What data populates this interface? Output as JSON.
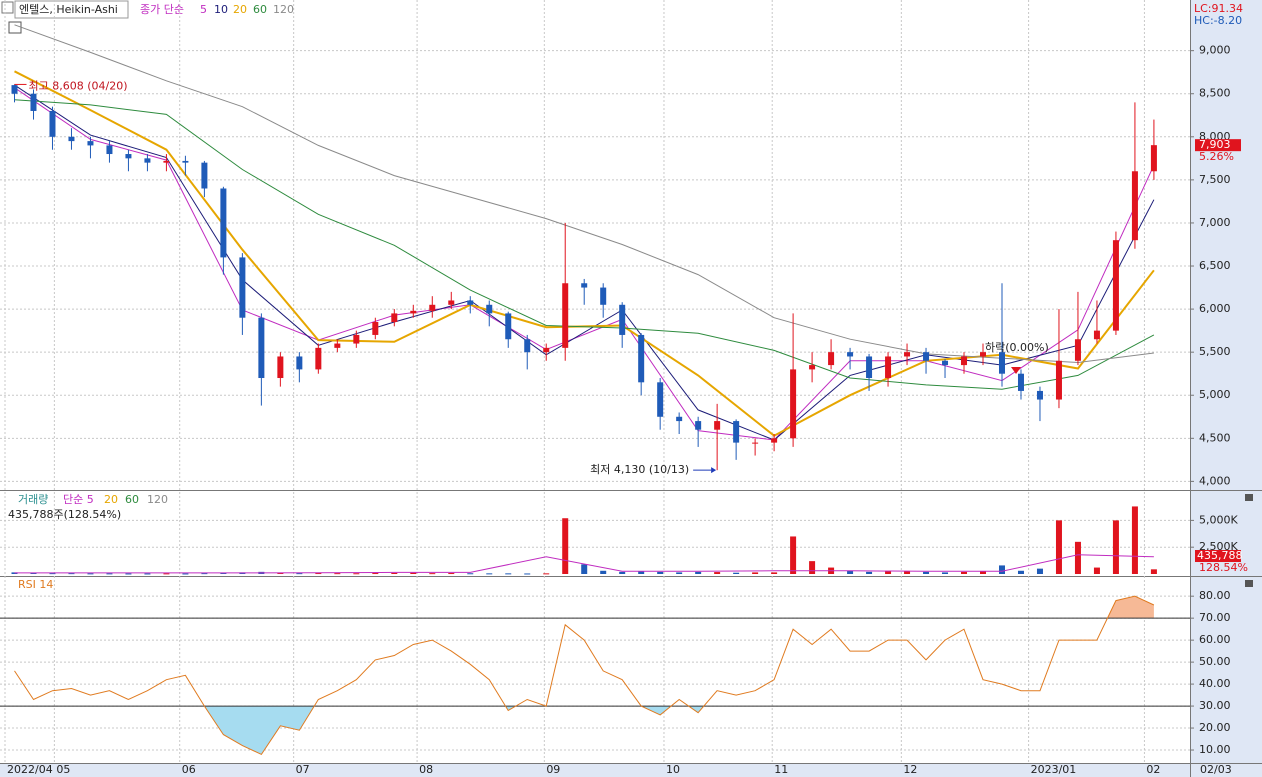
{
  "header": {
    "title": "엔텔스, Heikin-Ashi",
    "lc": "LC:91.34",
    "hc": "HC:-8.20"
  },
  "chart_data": [
    {
      "type": "candlestick",
      "legend_label": "종가 단순",
      "up_color": "#e0141e",
      "down_color": "#1f5bb8",
      "x": [
        0,
        1,
        2,
        3,
        4,
        5,
        6,
        7,
        8,
        9,
        10,
        11,
        12,
        13,
        14,
        15,
        16,
        17,
        18,
        19,
        20,
        21,
        22,
        23,
        24,
        25,
        26,
        27,
        28,
        29,
        30,
        31,
        32,
        33,
        34,
        35,
        36,
        37,
        38,
        39,
        40,
        41,
        42,
        43,
        44,
        45,
        46,
        47,
        48,
        49,
        50,
        51,
        52,
        53,
        54,
        55,
        56,
        57,
        58,
        59,
        60
      ],
      "open": [
        8600,
        8500,
        8300,
        8000,
        7950,
        7900,
        7800,
        7750,
        7700,
        7720,
        7700,
        7400,
        6600,
        5900,
        5200,
        5450,
        5300,
        5550,
        5600,
        5700,
        5850,
        5950,
        5980,
        6050,
        6100,
        6050,
        5950,
        5650,
        5500,
        5550,
        6300,
        6250,
        6050,
        5700,
        5150,
        4750,
        4700,
        4600,
        4700,
        4450,
        4450,
        4500,
        5300,
        5350,
        5500,
        5450,
        5200,
        5450,
        5500,
        5400,
        5350,
        5450,
        5500,
        5250,
        5050,
        4950,
        5400,
        5650,
        5750,
        6800,
        7600
      ],
      "high": [
        8608,
        8550,
        8350,
        8100,
        8000,
        7950,
        7850,
        7800,
        7800,
        7780,
        7720,
        7420,
        6650,
        5950,
        5500,
        5500,
        5600,
        5650,
        5750,
        5900,
        6000,
        6050,
        6150,
        6200,
        6150,
        6100,
        5970,
        5700,
        5600,
        7000,
        6350,
        6300,
        6080,
        5720,
        5200,
        4800,
        4750,
        4900,
        4720,
        4500,
        4550,
        5950,
        5500,
        5650,
        5550,
        5480,
        5500,
        5600,
        5550,
        5420,
        5500,
        5600,
        6300,
        5300,
        5100,
        6000,
        6200,
        6100,
        6900,
        8400,
        8200
      ],
      "low": [
        8400,
        8200,
        7850,
        7850,
        7750,
        7700,
        7600,
        7600,
        7600,
        7550,
        7300,
        6400,
        5700,
        4880,
        5100,
        5150,
        5250,
        5500,
        5550,
        5650,
        5800,
        5900,
        5900,
        6000,
        5950,
        5800,
        5550,
        5300,
        5400,
        5400,
        6050,
        5900,
        5550,
        5000,
        4600,
        4550,
        4400,
        4130,
        4250,
        4300,
        4350,
        4400,
        5150,
        5300,
        5300,
        5050,
        5100,
        5350,
        5250,
        5200,
        5250,
        5350,
        5100,
        4950,
        4700,
        4850,
        5350,
        5600,
        5700,
        6700,
        7500
      ],
      "close": [
        8500,
        8300,
        8000,
        7950,
        7900,
        7800,
        7750,
        7700,
        7720,
        7700,
        7400,
        6600,
        5900,
        5200,
        5450,
        5300,
        5550,
        5600,
        5700,
        5850,
        5950,
        5980,
        6050,
        6100,
        6050,
        5950,
        5650,
        5500,
        5550,
        6300,
        6250,
        6050,
        5700,
        5150,
        4750,
        4700,
        4600,
        4700,
        4450,
        4450,
        4500,
        5300,
        5350,
        5500,
        5450,
        5200,
        5450,
        5500,
        5400,
        5350,
        5450,
        5500,
        5250,
        5050,
        4950,
        5400,
        5650,
        5750,
        6800,
        7600,
        7903
      ],
      "series": [
        {
          "name": "5",
          "color": "#c02cc0",
          "x": [
            0,
            4,
            8,
            12,
            16,
            20,
            24,
            28,
            32,
            36,
            40,
            44,
            48,
            52,
            56,
            60
          ],
          "values": [
            8570,
            7970,
            7730,
            5990,
            5640,
            5930,
            6050,
            5530,
            5880,
            4590,
            4480,
            5400,
            5400,
            5170,
            5760,
            7670
          ]
        },
        {
          "name": "10",
          "color": "#1c1c78",
          "x": [
            0,
            4,
            8,
            12,
            16,
            20,
            24,
            28,
            32,
            36,
            40,
            44,
            48,
            52,
            56,
            60
          ],
          "values": [
            8600,
            8020,
            7760,
            6340,
            5580,
            5850,
            6100,
            5470,
            5990,
            4830,
            4480,
            5230,
            5470,
            5350,
            5580,
            7270
          ]
        },
        {
          "name": "20",
          "color": "#e6a600",
          "x": [
            0,
            4,
            8,
            12,
            16,
            20,
            24,
            28,
            32,
            36,
            40,
            44,
            48,
            52,
            56,
            60
          ],
          "values": [
            8760,
            8310,
            7850,
            6690,
            5640,
            5620,
            6050,
            5790,
            5810,
            5230,
            4530,
            5000,
            5400,
            5470,
            5310,
            6450
          ]
        },
        {
          "name": "60",
          "color": "#2e8b3e",
          "x": [
            0,
            4,
            8,
            12,
            16,
            20,
            24,
            28,
            32,
            36,
            40,
            44,
            48,
            52,
            56,
            60
          ],
          "values": [
            8430,
            8370,
            8260,
            7620,
            7100,
            6740,
            6220,
            5810,
            5780,
            5720,
            5520,
            5200,
            5120,
            5070,
            5230,
            5700
          ]
        },
        {
          "name": "120",
          "color": "#8a8a8a",
          "x": [
            0,
            4,
            8,
            12,
            16,
            20,
            24,
            28,
            32,
            36,
            40,
            44,
            48,
            52,
            56,
            60
          ],
          "values": [
            9300,
            8980,
            8650,
            8350,
            7900,
            7550,
            7300,
            7050,
            6750,
            6400,
            5900,
            5650,
            5480,
            5430,
            5380,
            5490
          ]
        }
      ],
      "annotations": [
        {
          "text": "최고 8,608 (04/20)",
          "value": 8608
        },
        {
          "text": "최저 4,130 (10/13)",
          "value": 4130
        }
      ],
      "signal_label": "하락(0.00%)",
      "last": {
        "value": 7903,
        "label": "7,903"
      },
      "change_label": "5.26%",
      "xlim": [
        -0.5,
        61.9
      ],
      "xticks": [
        {
          "value": -0.5,
          "label": "2022/04"
        },
        {
          "value": 2.1,
          "label": "05"
        },
        {
          "value": 8.7,
          "label": "06"
        },
        {
          "value": 14.7,
          "label": "07"
        },
        {
          "value": 21.2,
          "label": "08"
        },
        {
          "value": 27.9,
          "label": "09"
        },
        {
          "value": 34.2,
          "label": "10"
        },
        {
          "value": 39.9,
          "label": "11"
        },
        {
          "value": 46.7,
          "label": "12"
        },
        {
          "value": 53.4,
          "label": "2023/01"
        },
        {
          "value": 59.5,
          "label": "02"
        }
      ],
      "end_date_label": "02/03",
      "ylim": [
        3900,
        9530
      ],
      "yticks": [
        {
          "value": 4000,
          "label": "4,000"
        },
        {
          "value": 4500,
          "label": "4,500"
        },
        {
          "value": 5000,
          "label": "5,000"
        },
        {
          "value": 5500,
          "label": "5,500"
        },
        {
          "value": 6000,
          "label": "6,000"
        },
        {
          "value": 6500,
          "label": "6,500"
        },
        {
          "value": 7000,
          "label": "7,000"
        },
        {
          "value": 7500,
          "label": "7,500"
        },
        {
          "value": 8000,
          "label": "8,000"
        },
        {
          "value": 8500,
          "label": "8,500"
        },
        {
          "value": 9000,
          "label": "9,000"
        }
      ],
      "grid": true
    },
    {
      "type": "bar",
      "title": "거래량",
      "subtitle": "435,788주(128.54%)",
      "x": [
        0,
        1,
        2,
        3,
        4,
        5,
        6,
        7,
        8,
        9,
        10,
        11,
        12,
        13,
        14,
        15,
        16,
        17,
        18,
        19,
        20,
        21,
        22,
        23,
        24,
        25,
        26,
        27,
        28,
        29,
        30,
        31,
        32,
        33,
        34,
        35,
        36,
        37,
        38,
        39,
        40,
        41,
        42,
        43,
        44,
        45,
        46,
        47,
        48,
        49,
        50,
        51,
        52,
        53,
        54,
        55,
        56,
        57,
        58,
        59,
        60
      ],
      "values": [
        150,
        100,
        80,
        80,
        60,
        60,
        50,
        50,
        60,
        50,
        80,
        120,
        150,
        200,
        100,
        80,
        90,
        80,
        70,
        90,
        100,
        120,
        80,
        90,
        70,
        60,
        60,
        50,
        60,
        5200,
        900,
        300,
        200,
        250,
        200,
        150,
        200,
        180,
        120,
        150,
        150,
        3500,
        1200,
        600,
        300,
        200,
        300,
        250,
        200,
        150,
        200,
        250,
        800,
        300,
        500,
        5000,
        3000,
        600,
        5000,
        6300,
        435.788
      ],
      "series": [
        {
          "name": "단순 5",
          "color": "#c02cc0",
          "x": [
            0,
            4,
            8,
            12,
            16,
            20,
            24,
            28,
            32,
            36,
            40,
            44,
            48,
            52,
            56,
            60
          ],
          "values": [
            100,
            100,
            100,
            100,
            120,
            150,
            150,
            1600,
            250,
            250,
            300,
            300,
            250,
            250,
            1800,
            1600
          ]
        }
      ],
      "legend_more": [
        {
          "name": "20",
          "color": "#e6a600"
        },
        {
          "name": "60",
          "color": "#2e8b3e"
        },
        {
          "name": "120",
          "color": "#8a8a8a"
        }
      ],
      "last": {
        "value": 435.788,
        "label": "435,788"
      },
      "ratio_label": "128.54%",
      "ylim": [
        0,
        6900
      ],
      "yticks": [
        {
          "value": 2500,
          "label": "2,500K"
        },
        {
          "value": 5000,
          "label": "5,000K"
        }
      ]
    },
    {
      "type": "line",
      "title": "RSI 14",
      "color": "#e07b20",
      "x": [
        0,
        1,
        2,
        3,
        4,
        5,
        6,
        7,
        8,
        9,
        10,
        11,
        12,
        13,
        14,
        15,
        16,
        17,
        18,
        19,
        20,
        21,
        22,
        23,
        24,
        25,
        26,
        27,
        28,
        29,
        30,
        31,
        32,
        33,
        34,
        35,
        36,
        37,
        38,
        39,
        40,
        41,
        42,
        43,
        44,
        45,
        46,
        47,
        48,
        49,
        50,
        51,
        52,
        53,
        54,
        55,
        56,
        57,
        58,
        59,
        60
      ],
      "values": [
        46,
        33,
        37,
        38,
        35,
        37,
        33,
        37,
        42,
        44,
        30,
        17,
        12,
        8,
        21,
        19,
        33,
        37,
        42,
        51,
        53,
        58,
        60,
        55,
        49,
        42,
        28,
        33,
        30,
        67,
        60,
        46,
        42,
        30,
        26,
        33,
        27,
        37,
        35,
        37,
        42,
        65,
        58,
        65,
        55,
        55,
        60,
        60,
        51,
        60,
        65,
        42,
        40,
        37,
        37,
        60,
        60,
        60,
        78,
        80,
        76
      ],
      "levels": [
        30,
        70
      ],
      "low_fill": "#a6dcf0",
      "high_fill": "#f6b996",
      "ylim": [
        0,
        86
      ],
      "yticks": [
        {
          "value": 10,
          "label": "10.00"
        },
        {
          "value": 20,
          "label": "20.00"
        },
        {
          "value": 30,
          "label": "30.00"
        },
        {
          "value": 40,
          "label": "40.00"
        },
        {
          "value": 50,
          "label": "50.00"
        },
        {
          "value": 60,
          "label": "60.00"
        },
        {
          "value": 70,
          "label": "70.00"
        },
        {
          "value": 80,
          "label": "80.00"
        }
      ]
    }
  ]
}
